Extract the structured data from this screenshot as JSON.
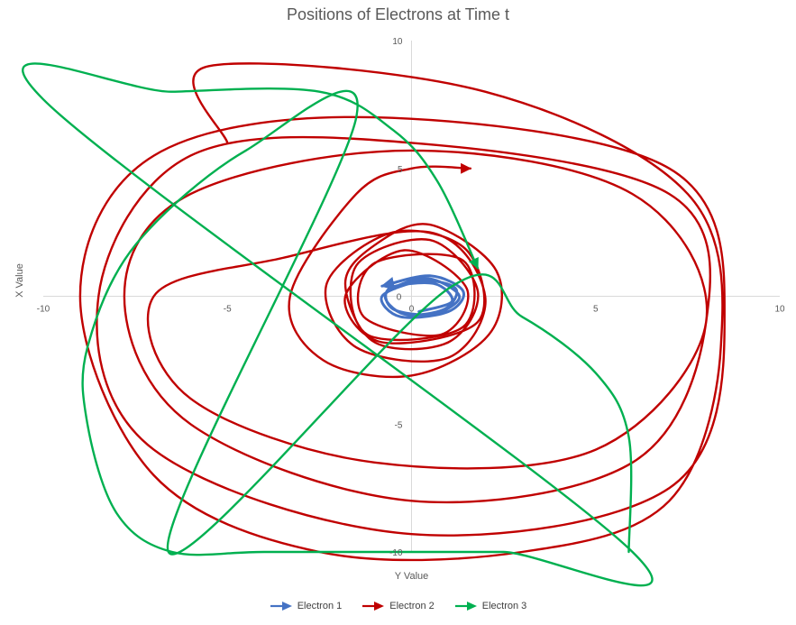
{
  "chart_data": {
    "type": "scatter",
    "title": "Positions of Electrons at Time t",
    "xlabel": "Y Value",
    "ylabel": "X Value",
    "xlim": [
      -10,
      10
    ],
    "ylim": [
      -10,
      10
    ],
    "x_ticks": [
      "-10",
      "-5",
      "0",
      "5",
      "10"
    ],
    "y_ticks": [
      "10",
      "5",
      "0",
      "-5",
      "-10"
    ],
    "grid": false,
    "legend_position": "bottom",
    "series": [
      {
        "name": "Electron 1",
        "color": "#4472C4",
        "points": [
          [
            -0.8,
            0.4
          ],
          [
            0.5,
            0.8
          ],
          [
            1.4,
            0.2
          ],
          [
            1,
            -0.6
          ],
          [
            -0.3,
            -0.8
          ],
          [
            -0.8,
            0
          ],
          [
            0.3,
            0.6
          ],
          [
            1.2,
            0.3
          ],
          [
            0.9,
            -0.5
          ],
          [
            -0.2,
            -0.7
          ],
          [
            -0.7,
            0.1
          ],
          [
            0.4,
            0.7
          ],
          [
            1.3,
            0
          ],
          [
            0.6,
            -0.7
          ],
          [
            -0.5,
            -0.5
          ],
          [
            -0.6,
            0.3
          ],
          [
            0.6,
            0.5
          ],
          [
            1.1,
            -0.2
          ],
          [
            0.2,
            -0.6
          ]
        ]
      },
      {
        "name": "Electron 2",
        "color": "#C00000",
        "points": [
          [
            1.6,
            5
          ],
          [
            0,
            5
          ],
          [
            -1.5,
            4
          ],
          [
            -3.3,
            0
          ],
          [
            -2.4,
            -2.5
          ],
          [
            0,
            -3.1
          ],
          [
            2.1,
            -1.5
          ],
          [
            2.3,
            1
          ],
          [
            0.5,
            2.8
          ],
          [
            -1,
            2
          ],
          [
            -1.8,
            0.5
          ],
          [
            -1,
            -1.8
          ],
          [
            1,
            -1.8
          ],
          [
            1.8,
            0.2
          ],
          [
            0.5,
            2.2
          ],
          [
            -1.5,
            1.2
          ],
          [
            -1.2,
            -1.5
          ],
          [
            1.4,
            -1.2
          ],
          [
            1.4,
            1.4
          ],
          [
            -1,
            1.3
          ],
          [
            -1.3,
            -0.8
          ],
          [
            0.8,
            -1.5
          ],
          [
            1.5,
            0.3
          ],
          [
            -0.2,
            1.8
          ],
          [
            -1.8,
            0
          ],
          [
            -0.8,
            -1.8
          ],
          [
            1.8,
            -1
          ],
          [
            1.5,
            1.8
          ],
          [
            -0.5,
            2.5
          ],
          [
            -2.3,
            0.5
          ],
          [
            -1.5,
            -2
          ],
          [
            1,
            -2.4
          ],
          [
            2,
            0
          ],
          [
            0.5,
            2.5
          ],
          [
            -3.5,
            1.5
          ],
          [
            -7,
            0
          ],
          [
            -6,
            -4
          ],
          [
            -1,
            -6.5
          ],
          [
            5,
            -6
          ],
          [
            8,
            -1
          ],
          [
            6,
            4
          ],
          [
            0,
            5.7
          ],
          [
            -6,
            4
          ],
          [
            -7.8,
            0
          ],
          [
            -6,
            -5
          ],
          [
            0,
            -8
          ],
          [
            6,
            -6.5
          ],
          [
            8,
            -1
          ],
          [
            7,
            4
          ],
          [
            0,
            6
          ],
          [
            -6,
            5.5
          ],
          [
            -8.5,
            0
          ],
          [
            -7,
            -6
          ],
          [
            0,
            -9.3
          ],
          [
            7,
            -7.5
          ],
          [
            8.5,
            -1
          ],
          [
            7,
            5
          ],
          [
            -1,
            7
          ],
          [
            -7,
            5.5
          ],
          [
            -9,
            0
          ],
          [
            -7,
            -7
          ],
          [
            -2.5,
            -10
          ],
          [
            3,
            -10
          ],
          [
            7,
            -8
          ],
          [
            8.4,
            -2
          ],
          [
            7.5,
            4
          ],
          [
            2,
            8
          ],
          [
            -5.5,
            9
          ],
          [
            -5,
            6
          ]
        ]
      },
      {
        "name": "Electron 3",
        "color": "#00B050",
        "points": [
          [
            1.8,
            1.1
          ],
          [
            0.7,
            4.5
          ],
          [
            -0.5,
            6.5
          ],
          [
            -2.5,
            8
          ],
          [
            -6.5,
            8
          ],
          [
            -10,
            7.7
          ],
          [
            6,
            -10
          ],
          [
            2.5,
            -10
          ],
          [
            0,
            -10
          ],
          [
            -4,
            -10
          ],
          [
            -6.5,
            -10
          ],
          [
            -8,
            -8.5
          ],
          [
            -8.8,
            -5
          ],
          [
            -8.8,
            -2
          ],
          [
            -7.5,
            2
          ],
          [
            -4.5,
            5.7
          ],
          [
            -1.5,
            7
          ],
          [
            -6.6,
            -10
          ],
          [
            1,
            0.3
          ],
          [
            3,
            -0.8
          ],
          [
            5,
            -3
          ],
          [
            5.9,
            -5.5
          ],
          [
            5.9,
            -10
          ]
        ]
      }
    ]
  }
}
